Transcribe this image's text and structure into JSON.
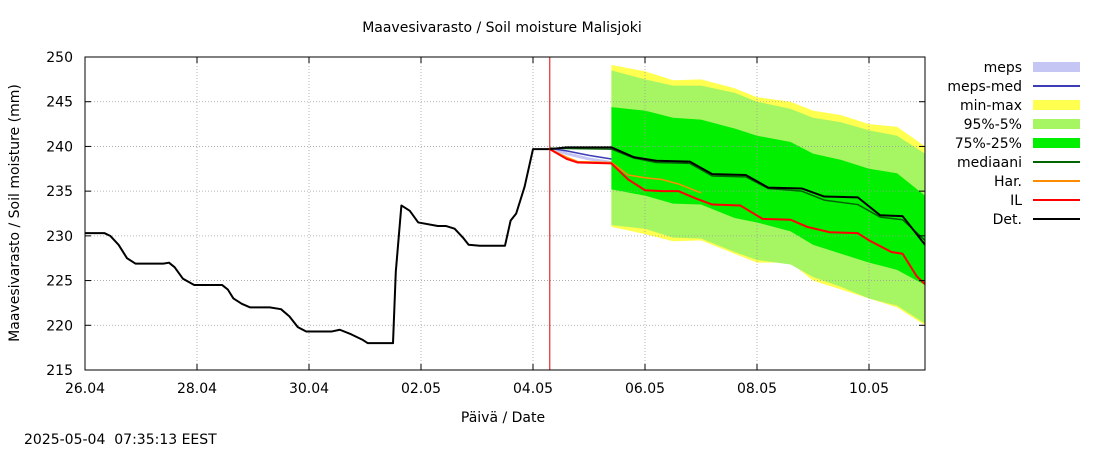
{
  "chart_data": {
    "type": "line",
    "title": "Maavesivarasto / Soil moisture   Malisjoki",
    "xlabel": "Päivä / Date",
    "ylabel": "Maavesivarasto / Soil moisture (mm)",
    "timestamp": "2025-05-04  07:35:13 EEST",
    "ylim": [
      215,
      250
    ],
    "xlim": [
      0,
      15
    ],
    "x_unit": "days since 26.04",
    "yticks": [
      "215",
      "220",
      "225",
      "230",
      "235",
      "240",
      "245",
      "250"
    ],
    "xticks": [
      {
        "x": 0,
        "label": "26.04"
      },
      {
        "x": 2,
        "label": "28.04"
      },
      {
        "x": 4,
        "label": "30.04"
      },
      {
        "x": 6,
        "label": "02.05"
      },
      {
        "x": 8,
        "label": "04.05"
      },
      {
        "x": 10,
        "label": "06.05"
      },
      {
        "x": 12,
        "label": "08.05"
      },
      {
        "x": 14,
        "label": "10.05"
      }
    ],
    "grid": true,
    "legend_position": "right",
    "forecast_marker_x": 8.3,
    "legend": [
      {
        "label": "meps",
        "kind": "fill",
        "color": "#c6c6f5"
      },
      {
        "label": "meps-med",
        "kind": "line",
        "color": "#3c3cb4"
      },
      {
        "label": "min-max",
        "kind": "fill",
        "color": "#ffff50"
      },
      {
        "label": "95%-5%",
        "kind": "fill",
        "color": "#a6f563"
      },
      {
        "label": "75%-25%",
        "kind": "fill",
        "color": "#00f000"
      },
      {
        "label": "mediaani",
        "kind": "line",
        "color": "#006400"
      },
      {
        "label": "Har.",
        "kind": "line",
        "color": "#ff8c00"
      },
      {
        "label": "IL",
        "kind": "line",
        "color": "#ff0000"
      },
      {
        "label": "Det.",
        "kind": "line",
        "color": "#000000"
      }
    ],
    "bands": [
      {
        "name": "min-max",
        "color": "#ffff50",
        "x": [
          9.4,
          10,
          10.5,
          11,
          11.6,
          12,
          12.6,
          13,
          13.5,
          14,
          14.5,
          15
        ],
        "upper": [
          249.1,
          248.4,
          247.4,
          247.5,
          246.5,
          245.5,
          245.0,
          244.0,
          243.5,
          242.5,
          242.2,
          240.0
        ],
        "lower": [
          231.0,
          230.2,
          229.4,
          229.5,
          228.0,
          227.0,
          227.0,
          225.0,
          224.0,
          223.0,
          222.0,
          220.0
        ]
      },
      {
        "name": "95%-5%",
        "color": "#a6f563",
        "x": [
          9.4,
          10,
          10.5,
          11,
          11.6,
          12,
          12.6,
          13,
          13.5,
          14,
          14.5,
          15
        ],
        "upper": [
          248.5,
          247.5,
          246.8,
          246.8,
          246.0,
          245.0,
          244.2,
          243.2,
          242.7,
          241.8,
          241.2,
          239.2
        ],
        "lower": [
          231.2,
          230.8,
          229.8,
          229.7,
          228.2,
          227.3,
          226.8,
          225.4,
          224.3,
          223.0,
          222.2,
          220.2
        ]
      },
      {
        "name": "75%-25%",
        "color": "#00f000",
        "x": [
          9.4,
          10,
          10.5,
          11,
          11.6,
          12,
          12.6,
          13,
          13.5,
          14,
          14.5,
          15
        ],
        "upper": [
          244.4,
          244.0,
          243.2,
          243.0,
          242.0,
          241.2,
          240.5,
          239.2,
          238.5,
          237.5,
          237.0,
          234.5
        ],
        "lower": [
          235.2,
          234.5,
          233.6,
          233.5,
          232.0,
          231.5,
          230.5,
          229.0,
          228.0,
          227.0,
          226.2,
          224.5
        ]
      }
    ],
    "series": [
      {
        "name": "meps",
        "color": "#c6c6f5",
        "width": 3,
        "x": [
          8.3,
          8.6,
          9.0,
          9.4
        ],
        "y": [
          239.8,
          239.2,
          238.6,
          238.2
        ]
      },
      {
        "name": "meps-med",
        "color": "#3c3cb4",
        "width": 1.5,
        "x": [
          8.3,
          8.6,
          9.0,
          9.4
        ],
        "y": [
          239.8,
          239.5,
          239.0,
          238.6
        ]
      },
      {
        "name": "Har.",
        "color": "#ff8c00",
        "width": 1.5,
        "x": [
          8.3,
          8.6,
          8.8,
          9.4,
          9.7,
          10.0,
          10.3,
          10.6,
          11.0
        ],
        "y": [
          239.7,
          238.8,
          238.3,
          238.2,
          236.8,
          236.5,
          236.3,
          235.8,
          234.8
        ]
      },
      {
        "name": "mediaani",
        "color": "#006400",
        "width": 1.5,
        "x": [
          8.3,
          9.4,
          9.8,
          10.2,
          10.8,
          11.2,
          11.8,
          12.2,
          12.8,
          13.2,
          13.8,
          14.2,
          14.6,
          15.0
        ],
        "y": [
          239.8,
          239.7,
          238.7,
          238.2,
          238.1,
          236.7,
          236.6,
          235.3,
          235.0,
          234.0,
          233.5,
          232.1,
          231.8,
          229.5
        ]
      },
      {
        "name": "IL",
        "color": "#ff0000",
        "width": 2,
        "x": [
          8.3,
          8.6,
          8.8,
          9.4,
          9.7,
          10.0,
          10.3,
          10.6,
          10.9,
          11.2,
          11.7,
          12.1,
          12.6,
          12.9,
          13.3,
          13.8,
          14.0,
          14.4,
          14.6,
          14.85,
          15.0
        ],
        "y": [
          239.7,
          238.6,
          238.2,
          238.1,
          236.3,
          235.1,
          235.0,
          235.0,
          234.2,
          233.5,
          233.4,
          231.9,
          231.8,
          231.0,
          230.4,
          230.3,
          229.5,
          228.2,
          228.0,
          225.5,
          224.6
        ]
      },
      {
        "name": "Det.",
        "color": "#000000",
        "width": 2,
        "x": [
          0,
          0.35,
          0.45,
          0.6,
          0.75,
          0.9,
          1.05,
          1.4,
          1.5,
          1.6,
          1.75,
          1.95,
          2.2,
          2.45,
          2.55,
          2.65,
          2.8,
          2.95,
          3.3,
          3.5,
          3.65,
          3.8,
          3.95,
          4.1,
          4.4,
          4.55,
          4.75,
          4.95,
          5.05,
          5.3,
          5.5,
          5.55,
          5.65,
          5.8,
          5.95,
          6.3,
          6.45,
          6.6,
          6.75,
          6.85,
          7.05,
          7.35,
          7.5,
          7.6,
          7.7,
          7.85,
          8.0,
          8.3,
          8.6,
          8.9,
          9.4,
          9.8,
          10.2,
          10.8,
          11.2,
          11.8,
          12.2,
          12.8,
          13.2,
          13.8,
          14.2,
          14.6,
          15.0
        ],
        "y": [
          230.3,
          230.3,
          230.0,
          229.0,
          227.5,
          226.9,
          226.9,
          226.9,
          227.0,
          226.5,
          225.2,
          224.5,
          224.5,
          224.5,
          224.0,
          223.0,
          222.4,
          222.0,
          222.0,
          221.8,
          221.0,
          219.8,
          219.3,
          219.3,
          219.3,
          219.5,
          219.0,
          218.4,
          218.0,
          218.0,
          218.0,
          226.0,
          233.4,
          232.8,
          231.5,
          231.1,
          231.1,
          230.8,
          229.8,
          229.0,
          228.9,
          228.9,
          228.9,
          231.7,
          232.5,
          235.5,
          239.7,
          239.7,
          239.9,
          239.9,
          239.9,
          238.8,
          238.4,
          238.3,
          236.9,
          236.8,
          235.4,
          235.3,
          234.4,
          234.3,
          232.3,
          232.2,
          229.0
        ]
      }
    ]
  }
}
